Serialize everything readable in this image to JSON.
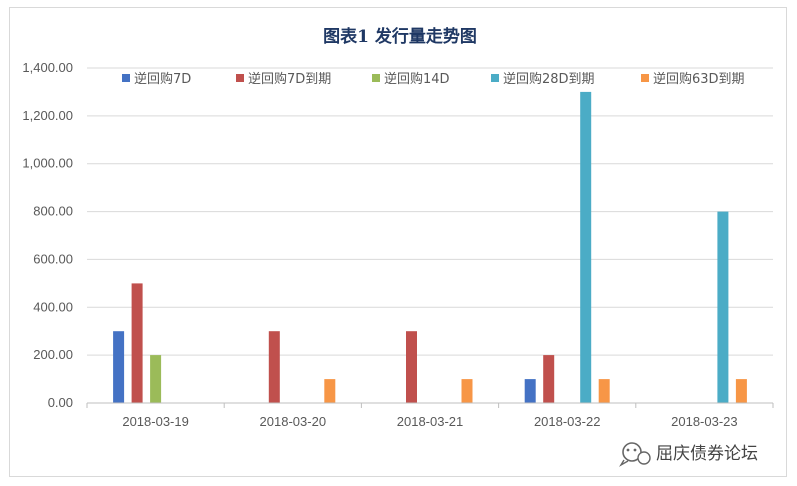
{
  "chart_data": {
    "type": "bar",
    "title": "图表1  发行量走势图",
    "categories": [
      "2018-03-19",
      "2018-03-20",
      "2018-03-21",
      "2018-03-22",
      "2018-03-23"
    ],
    "series": [
      {
        "name": "逆回购7D",
        "color": "#4472c4",
        "values": [
          300,
          0,
          0,
          100,
          0
        ]
      },
      {
        "name": "逆回购7D到期",
        "color": "#c0504d",
        "values": [
          500,
          300,
          300,
          200,
          0
        ]
      },
      {
        "name": "逆回购14D",
        "color": "#9bbb59",
        "values": [
          200,
          0,
          0,
          0,
          0
        ]
      },
      {
        "name": "逆回购28D到期",
        "color": "#4bacc6",
        "values": [
          0,
          0,
          0,
          1300,
          800
        ]
      },
      {
        "name": "逆回购63D到期",
        "color": "#f79646",
        "values": [
          0,
          100,
          100,
          100,
          100
        ]
      }
    ],
    "y_ticks": [
      "0.00",
      "200.00",
      "400.00",
      "600.00",
      "800.00",
      "1,000.00",
      "1,200.00",
      "1,400.00"
    ],
    "ylim": [
      0,
      1400
    ],
    "grid": true,
    "legend_position": "top"
  },
  "watermark": {
    "icon": "wechat-icon",
    "text": "屈庆债券论坛"
  }
}
